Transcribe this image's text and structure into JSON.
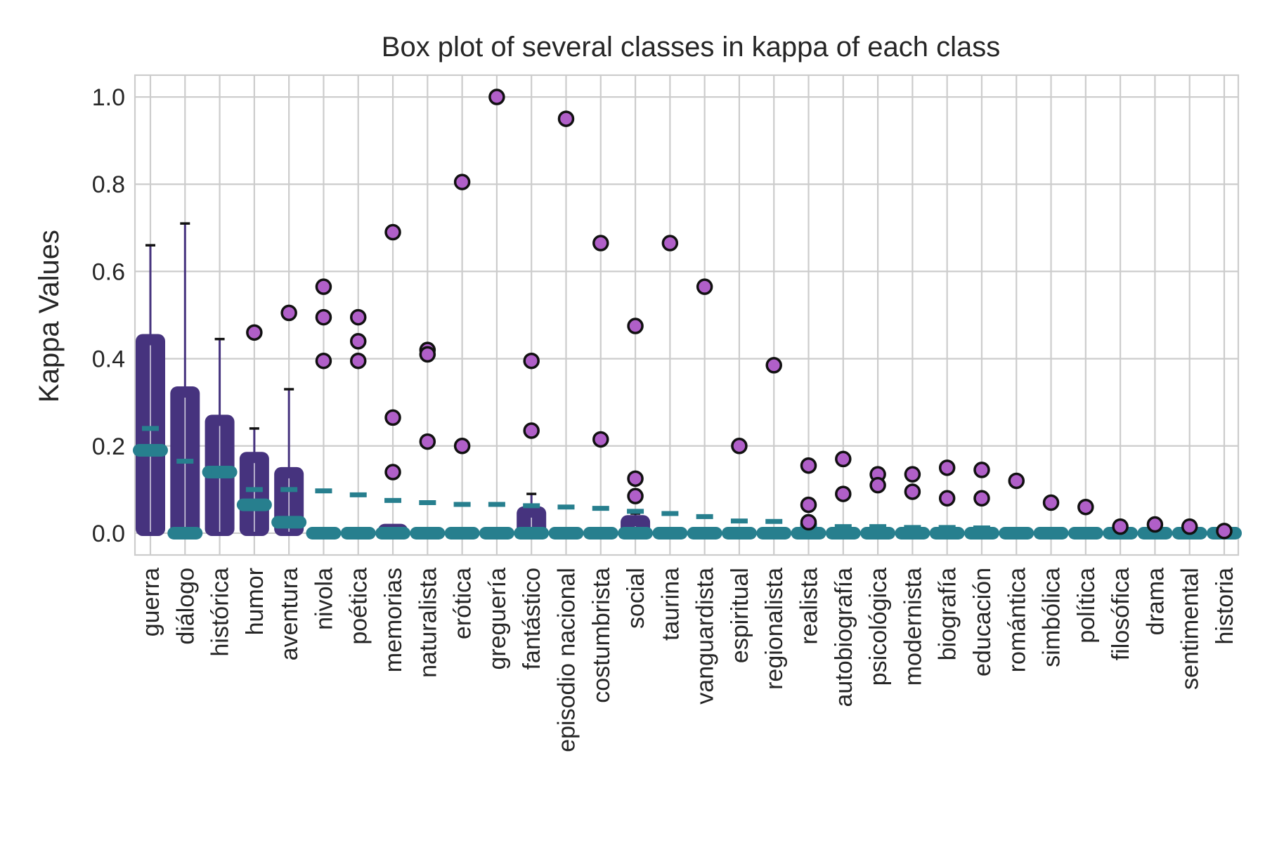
{
  "chart_data": {
    "type": "box",
    "title": "Box plot of several classes in kappa of each class",
    "xlabel": "",
    "ylabel": "Kappa Values",
    "ylim": [
      -0.05,
      1.05
    ],
    "yticks": [
      0.0,
      0.2,
      0.4,
      0.6,
      0.8,
      1.0
    ],
    "ytick_labels": [
      "0.0",
      "0.2",
      "0.4",
      "0.6",
      "0.8",
      "1.0"
    ],
    "grid": true,
    "colors": {
      "box": "#46337e",
      "median": "#277f8e",
      "mean": "#277f8e",
      "outlier": "#b05fc8",
      "grid": "#cccccc"
    },
    "categories": [
      "guerra",
      "diálogo",
      "histórica",
      "humor",
      "aventura",
      "nivola",
      "poética",
      "memorias",
      "naturalista",
      "erótica",
      "greguería",
      "fantástico",
      "episodio nacional",
      "costumbrista",
      "social",
      "taurina",
      "vanguardista",
      "espiritual",
      "regionalista",
      "realista",
      "autobiografía",
      "psicológica",
      "modernista",
      "biografía",
      "educación",
      "romántica",
      "simbólica",
      "política",
      "filosófica",
      "drama",
      "sentimental",
      "historia"
    ],
    "boxes": [
      {
        "whisker_low": 0.0,
        "q1": 0.0,
        "median": 0.19,
        "q3": 0.45,
        "whisker_high": 0.66,
        "mean": 0.24,
        "outliers": []
      },
      {
        "whisker_low": 0.0,
        "q1": 0.0,
        "median": 0.0,
        "q3": 0.33,
        "whisker_high": 0.71,
        "mean": 0.165,
        "outliers": []
      },
      {
        "whisker_low": 0.0,
        "q1": 0.0,
        "median": 0.14,
        "q3": 0.265,
        "whisker_high": 0.445,
        "mean": 0.14,
        "outliers": []
      },
      {
        "whisker_low": 0.0,
        "q1": 0.0,
        "median": 0.065,
        "q3": 0.18,
        "whisker_high": 0.24,
        "mean": 0.1,
        "outliers": [
          0.46
        ]
      },
      {
        "whisker_low": 0.0,
        "q1": 0.0,
        "median": 0.025,
        "q3": 0.145,
        "whisker_high": 0.33,
        "mean": 0.1,
        "outliers": [
          0.505
        ]
      },
      {
        "whisker_low": 0.0,
        "q1": 0.0,
        "median": 0.0,
        "q3": 0.0,
        "whisker_high": 0.0,
        "mean": 0.097,
        "outliers": [
          0.565,
          0.495,
          0.395
        ]
      },
      {
        "whisker_low": 0.0,
        "q1": 0.0,
        "median": 0.0,
        "q3": 0.0,
        "whisker_high": 0.0,
        "mean": 0.088,
        "outliers": [
          0.495,
          0.44,
          0.395
        ]
      },
      {
        "whisker_low": 0.0,
        "q1": 0.0,
        "median": 0.0,
        "q3": 0.015,
        "whisker_high": 0.015,
        "mean": 0.075,
        "outliers": [
          0.69,
          0.265,
          0.14
        ]
      },
      {
        "whisker_low": 0.0,
        "q1": 0.0,
        "median": 0.0,
        "q3": 0.0,
        "whisker_high": 0.0,
        "mean": 0.07,
        "outliers": [
          0.42,
          0.41,
          0.21
        ]
      },
      {
        "whisker_low": 0.0,
        "q1": 0.0,
        "median": 0.0,
        "q3": 0.0,
        "whisker_high": 0.0,
        "mean": 0.066,
        "outliers": [
          0.805,
          0.2
        ]
      },
      {
        "whisker_low": 0.0,
        "q1": 0.0,
        "median": 0.0,
        "q3": 0.0,
        "whisker_high": 0.0,
        "mean": 0.066,
        "outliers": [
          1.0
        ]
      },
      {
        "whisker_low": 0.0,
        "q1": 0.0,
        "median": 0.0,
        "q3": 0.055,
        "whisker_high": 0.09,
        "mean": 0.063,
        "outliers": [
          0.395,
          0.235
        ]
      },
      {
        "whisker_low": 0.0,
        "q1": 0.0,
        "median": 0.0,
        "q3": 0.0,
        "whisker_high": 0.0,
        "mean": 0.06,
        "outliers": [
          0.95
        ]
      },
      {
        "whisker_low": 0.0,
        "q1": 0.0,
        "median": 0.0,
        "q3": 0.0,
        "whisker_high": 0.0,
        "mean": 0.057,
        "outliers": [
          0.665,
          0.215
        ]
      },
      {
        "whisker_low": 0.0,
        "q1": 0.0,
        "median": 0.0,
        "q3": 0.035,
        "whisker_high": 0.045,
        "mean": 0.05,
        "outliers": [
          0.475,
          0.125,
          0.085
        ]
      },
      {
        "whisker_low": 0.0,
        "q1": 0.0,
        "median": 0.0,
        "q3": 0.0,
        "whisker_high": 0.0,
        "mean": 0.045,
        "outliers": [
          0.665
        ]
      },
      {
        "whisker_low": 0.0,
        "q1": 0.0,
        "median": 0.0,
        "q3": 0.0,
        "whisker_high": 0.0,
        "mean": 0.038,
        "outliers": [
          0.565
        ]
      },
      {
        "whisker_low": 0.0,
        "q1": 0.0,
        "median": 0.0,
        "q3": 0.0,
        "whisker_high": 0.0,
        "mean": 0.028,
        "outliers": [
          0.2
        ]
      },
      {
        "whisker_low": 0.0,
        "q1": 0.0,
        "median": 0.0,
        "q3": 0.0,
        "whisker_high": 0.0,
        "mean": 0.027,
        "outliers": [
          0.385
        ]
      },
      {
        "whisker_low": 0.0,
        "q1": 0.0,
        "median": 0.0,
        "q3": 0.0,
        "whisker_high": 0.0,
        "mean": 0.017,
        "outliers": [
          0.155,
          0.065,
          0.025
        ]
      },
      {
        "whisker_low": 0.0,
        "q1": 0.0,
        "median": 0.0,
        "q3": 0.0,
        "whisker_high": 0.0,
        "mean": 0.015,
        "outliers": [
          0.17,
          0.09
        ]
      },
      {
        "whisker_low": 0.0,
        "q1": 0.0,
        "median": 0.0,
        "q3": 0.0,
        "whisker_high": 0.0,
        "mean": 0.015,
        "outliers": [
          0.135,
          0.11
        ]
      },
      {
        "whisker_low": 0.0,
        "q1": 0.0,
        "median": 0.0,
        "q3": 0.0,
        "whisker_high": 0.0,
        "mean": 0.013,
        "outliers": [
          0.135,
          0.095
        ]
      },
      {
        "whisker_low": 0.0,
        "q1": 0.0,
        "median": 0.0,
        "q3": 0.0,
        "whisker_high": 0.0,
        "mean": 0.013,
        "outliers": [
          0.15,
          0.08
        ]
      },
      {
        "whisker_low": 0.0,
        "q1": 0.0,
        "median": 0.0,
        "q3": 0.0,
        "whisker_high": 0.0,
        "mean": 0.012,
        "outliers": [
          0.145,
          0.08
        ]
      },
      {
        "whisker_low": 0.0,
        "q1": 0.0,
        "median": 0.0,
        "q3": 0.0,
        "whisker_high": 0.0,
        "mean": 0.0,
        "outliers": [
          0.12
        ]
      },
      {
        "whisker_low": 0.0,
        "q1": 0.0,
        "median": 0.0,
        "q3": 0.0,
        "whisker_high": 0.0,
        "mean": 0.0,
        "outliers": [
          0.07
        ]
      },
      {
        "whisker_low": 0.0,
        "q1": 0.0,
        "median": 0.0,
        "q3": 0.0,
        "whisker_high": 0.0,
        "mean": 0.0,
        "outliers": [
          0.06
        ]
      },
      {
        "whisker_low": 0.0,
        "q1": 0.0,
        "median": 0.0,
        "q3": 0.0,
        "whisker_high": 0.0,
        "mean": 0.0,
        "outliers": [
          0.015
        ]
      },
      {
        "whisker_low": 0.0,
        "q1": 0.0,
        "median": 0.0,
        "q3": 0.0,
        "whisker_high": 0.0,
        "mean": 0.0,
        "outliers": [
          0.02
        ]
      },
      {
        "whisker_low": 0.0,
        "q1": 0.0,
        "median": 0.0,
        "q3": 0.0,
        "whisker_high": 0.0,
        "mean": 0.0,
        "outliers": [
          0.015
        ]
      },
      {
        "whisker_low": 0.0,
        "q1": 0.0,
        "median": 0.0,
        "q3": 0.0,
        "whisker_high": 0.0,
        "mean": 0.0,
        "outliers": [
          0.005
        ]
      }
    ]
  }
}
